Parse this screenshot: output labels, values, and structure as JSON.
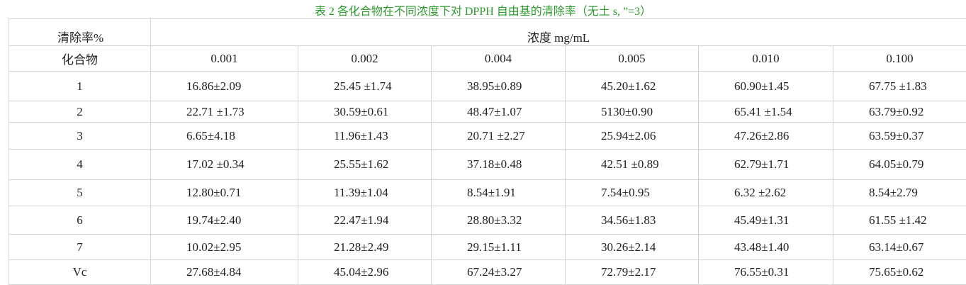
{
  "title": "表 2 各化合物在不同浓度下对 DPPH 自由基的清除率（无土 s, ”=3）",
  "table": {
    "corner_top": "清除率%",
    "group_header": "浓度 mg/mL",
    "corner_bottom": "化合物",
    "columns": [
      "0.001",
      "0.002",
      "0.004",
      "0.005",
      "0.010",
      "0.100"
    ],
    "rows": [
      [
        "1",
        "16.86±2.09",
        "25.45 ±1.74",
        "38.95±0.89",
        "45.20±1.62",
        "60.90±1.45",
        "67.75 ±1.83"
      ],
      [
        "2",
        "22.71 ±1.73",
        "30.59±0.61",
        "48.47±1.07",
        "5130±0.90",
        "65.41 ±1.54",
        "63.79±0.92"
      ],
      [
        "3",
        "6.65±4.18",
        "11.96±1.43",
        "20.71 ±2.27",
        "25.94±2.06",
        "47.26±2.86",
        "63.59±0.37"
      ],
      [
        "4",
        "17.02 ±0.34",
        "25.55±1.62",
        "37.18±0.48",
        "42.51 ±0.89",
        "62.79±1.71",
        "64.05±0.79"
      ],
      [
        "5",
        "12.80±0.71",
        "11.39±1.04",
        "8.54±1.91",
        "7.54±0.95",
        "6.32 ±2.62",
        "8.54±2.79"
      ],
      [
        "6",
        "19.74±2.40",
        "22.47±1.94",
        "28.80±3.32",
        "34.56±1.83",
        "45.49±1.31",
        "61.55 ±1.42"
      ],
      [
        "7",
        "10.02±2.95",
        "21.28±2.49",
        "29.15±1.11",
        "30.26±2.14",
        "43.48±1.40",
        "63.14±0.67"
      ],
      [
        "Vc",
        "27.68±4.84",
        "45.04±2.96",
        "67.24±3.27",
        "72.79±2.17",
        "76.55±0.31",
        "75.65±0.62"
      ]
    ]
  }
}
